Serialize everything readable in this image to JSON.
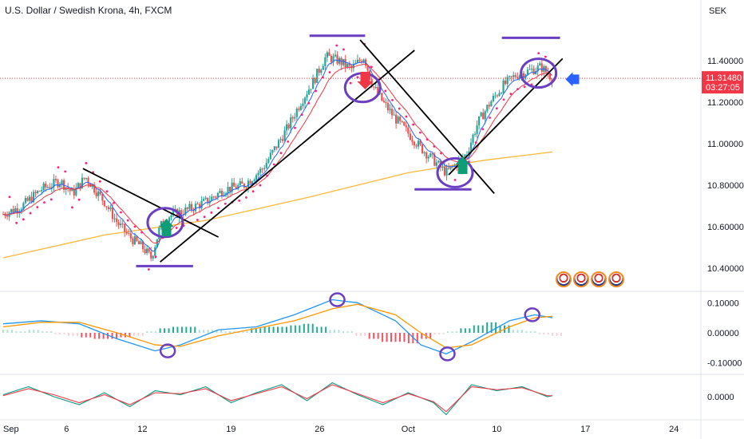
{
  "header": {
    "title": "U.S. Dollar / Swedish Krona, 4h, FXCM",
    "currency": "SEK"
  },
  "colors": {
    "up": "#26a69a",
    "down": "#ef5350",
    "sar": "#ff1f7a",
    "ema_fast": "#2962ff",
    "ema_slow": "#f23645",
    "ma_long": "#f9b93b",
    "annotation": "#6a3fc1",
    "trendline": "#000000",
    "macd_line": "#2196f3",
    "signal_line": "#ff9800",
    "price_tag": "#f23645"
  },
  "events": {
    "flag_icon": "us-flag-icon",
    "count": 4
  },
  "chart_data": [
    {
      "type": "candlestick",
      "panel": "price",
      "title": "U.S. Dollar / Swedish Krona, 4h, FXCM",
      "ylabel": "SEK",
      "ylim": [
        10.3,
        11.6
      ],
      "yticks": [
        "11.40000",
        "11.20000",
        "11.00000",
        "10.80000",
        "10.60000",
        "10.40000"
      ],
      "x_ticks": [
        {
          "label": "Sep",
          "x": 0
        },
        {
          "label": "6",
          "x": 5
        },
        {
          "label": "12",
          "x": 11
        },
        {
          "label": "19",
          "x": 18
        },
        {
          "label": "26",
          "x": 25
        },
        {
          "label": "Oct",
          "x": 32
        },
        {
          "label": "10",
          "x": 39
        },
        {
          "label": "17",
          "x": 46
        },
        {
          "label": "24",
          "x": 53
        }
      ],
      "x_range": [
        0,
        55
      ],
      "close_path": [
        [
          0,
          10.66
        ],
        [
          1.5,
          10.7
        ],
        [
          3,
          10.78
        ],
        [
          4.5,
          10.82
        ],
        [
          5.5,
          10.76
        ],
        [
          6.5,
          10.84
        ],
        [
          8,
          10.72
        ],
        [
          9,
          10.62
        ],
        [
          10,
          10.55
        ],
        [
          11,
          10.5
        ],
        [
          11.7,
          10.45
        ],
        [
          12.4,
          10.6
        ],
        [
          13,
          10.65
        ],
        [
          14.5,
          10.68
        ],
        [
          16,
          10.72
        ],
        [
          17.5,
          10.78
        ],
        [
          19,
          10.8
        ],
        [
          20.5,
          10.88
        ],
        [
          21.5,
          10.98
        ],
        [
          22.5,
          11.08
        ],
        [
          23.5,
          11.2
        ],
        [
          24.5,
          11.3
        ],
        [
          25.5,
          11.42
        ],
        [
          26.5,
          11.4
        ],
        [
          27.5,
          11.36
        ],
        [
          28.5,
          11.42
        ],
        [
          29.2,
          11.28
        ],
        [
          30,
          11.2
        ],
        [
          31,
          11.12
        ],
        [
          32,
          11.05
        ],
        [
          33,
          10.98
        ],
        [
          34,
          10.92
        ],
        [
          35,
          10.86
        ],
        [
          35.8,
          10.9
        ],
        [
          36.6,
          10.95
        ],
        [
          37.5,
          11.1
        ],
        [
          38.5,
          11.2
        ],
        [
          39.5,
          11.28
        ],
        [
          40.5,
          11.33
        ],
        [
          41.5,
          11.35
        ],
        [
          42.5,
          11.37
        ],
        [
          43.4,
          11.315
        ]
      ],
      "last_price": "11.31480",
      "countdown": "03:27:05",
      "moving_averages": [
        {
          "name": "",
          "period_hint": "long",
          "path": [
            [
              0,
              10.45
            ],
            [
              8,
              10.56
            ],
            [
              16,
              10.63
            ],
            [
              24,
              10.74
            ],
            [
              32,
              10.86
            ],
            [
              38,
              10.92
            ],
            [
              43.4,
              10.96
            ]
          ]
        }
      ],
      "annotations": {
        "horizontal_lines": [
          {
            "x0": 10.5,
            "x1": 15,
            "y": 10.41
          },
          {
            "x0": 24.2,
            "x1": 28.6,
            "y": 11.52
          },
          {
            "x0": 32.5,
            "x1": 37,
            "y": 10.78
          },
          {
            "x0": 39.4,
            "x1": 44,
            "y": 11.51
          }
        ],
        "trendlines": [
          {
            "x0": 6.3,
            "y0": 10.88,
            "x1": 17,
            "y1": 10.55
          },
          {
            "x0": 12.4,
            "y0": 10.43,
            "x1": 32.5,
            "y1": 11.45
          },
          {
            "x0": 28.2,
            "y0": 11.5,
            "x1": 38.8,
            "y1": 10.76
          },
          {
            "x0": 35.2,
            "y0": 10.85,
            "x1": 44.2,
            "y1": 11.41
          }
        ],
        "ellipses": [
          {
            "x": 12.8,
            "y": 10.62
          },
          {
            "x": 28.4,
            "y": 11.27
          },
          {
            "x": 35.7,
            "y": 10.86
          },
          {
            "x": 42.3,
            "y": 11.34
          }
        ],
        "arrows": [
          {
            "kind": "down",
            "x": 28.6,
            "y": 11.3
          },
          {
            "kind": "up",
            "x": 12.9,
            "y": 10.6
          },
          {
            "kind": "up",
            "x": 36.3,
            "y": 10.9
          },
          {
            "kind": "left-marker",
            "x": 45,
            "y": 11.31
          }
        ]
      }
    },
    {
      "type": "line",
      "panel": "macd",
      "ylim": [
        -0.13,
        0.13
      ],
      "yticks": [
        "0.10000",
        "0.00000",
        "-0.10000"
      ],
      "series": [
        {
          "role": "macd",
          "points": [
            [
              0,
              0.03
            ],
            [
              3,
              0.04
            ],
            [
              6,
              0.03
            ],
            [
              9,
              -0.02
            ],
            [
              12,
              -0.06
            ],
            [
              14,
              -0.04
            ],
            [
              17,
              0.01
            ],
            [
              20,
              0.02
            ],
            [
              23,
              0.06
            ],
            [
              26,
              0.11
            ],
            [
              28,
              0.1
            ],
            [
              31,
              0.04
            ],
            [
              33,
              -0.04
            ],
            [
              35,
              -0.07
            ],
            [
              37,
              -0.03
            ],
            [
              40,
              0.04
            ],
            [
              42,
              0.06
            ],
            [
              43.4,
              0.05
            ]
          ]
        },
        {
          "role": "signal",
          "points": [
            [
              0,
              0.02
            ],
            [
              3,
              0.035
            ],
            [
              6,
              0.035
            ],
            [
              9,
              0.0
            ],
            [
              12,
              -0.04
            ],
            [
              14,
              -0.045
            ],
            [
              17,
              -0.01
            ],
            [
              20,
              0.015
            ],
            [
              23,
              0.04
            ],
            [
              26,
              0.08
            ],
            [
              28,
              0.095
            ],
            [
              31,
              0.06
            ],
            [
              33,
              0.0
            ],
            [
              35,
              -0.05
            ],
            [
              37,
              -0.04
            ],
            [
              40,
              0.02
            ],
            [
              42,
              0.05
            ],
            [
              43.4,
              0.055
            ]
          ]
        }
      ],
      "histogram": [
        0.01,
        0.005,
        0.01,
        0.005,
        -0.005,
        -0.01,
        -0.015,
        -0.02,
        -0.02,
        -0.015,
        -0.01,
        0.005,
        0.015,
        0.02,
        0.02,
        0.01,
        0.01,
        0.005,
        0.005,
        0.015,
        0.02,
        0.02,
        0.025,
        0.03,
        0.02,
        0.01,
        0.005,
        -0.01,
        -0.02,
        -0.03,
        -0.03,
        -0.035,
        -0.02,
        -0.005,
        0.005,
        0.015,
        0.025,
        0.035,
        0.025,
        0.01,
        0.005,
        -0.005,
        -0.01
      ],
      "circles": [
        {
          "x": 13,
          "y": -0.06
        },
        {
          "x": 26.4,
          "y": 0.11
        },
        {
          "x": 35.1,
          "y": -0.07
        },
        {
          "x": 41.8,
          "y": 0.06
        }
      ]
    },
    {
      "type": "line",
      "panel": "oscillator",
      "ylim": [
        -1,
        1
      ],
      "yticks": [
        "0.0000"
      ],
      "series": [
        {
          "role": "fast",
          "points": [
            [
              0,
              0.1
            ],
            [
              2,
              0.5
            ],
            [
              4,
              0.0
            ],
            [
              6,
              -0.4
            ],
            [
              8,
              0.2
            ],
            [
              10,
              -0.5
            ],
            [
              12,
              0.3
            ],
            [
              14,
              0.1
            ],
            [
              16,
              0.5
            ],
            [
              18,
              -0.3
            ],
            [
              20,
              0.2
            ],
            [
              22,
              0.6
            ],
            [
              24,
              -0.2
            ],
            [
              26,
              0.7
            ],
            [
              28,
              0.1
            ],
            [
              30,
              -0.4
            ],
            [
              32,
              0.2
            ],
            [
              34,
              -0.3
            ],
            [
              35,
              -0.9
            ],
            [
              37,
              0.6
            ],
            [
              39,
              0.3
            ],
            [
              41,
              0.5
            ],
            [
              43,
              0.0
            ],
            [
              43.4,
              0.05
            ]
          ]
        },
        {
          "role": "slow",
          "points": [
            [
              0,
              0.05
            ],
            [
              2,
              0.4
            ],
            [
              4,
              0.1
            ],
            [
              6,
              -0.3
            ],
            [
              8,
              0.1
            ],
            [
              10,
              -0.4
            ],
            [
              12,
              0.2
            ],
            [
              14,
              0.15
            ],
            [
              16,
              0.4
            ],
            [
              18,
              -0.2
            ],
            [
              20,
              0.15
            ],
            [
              22,
              0.5
            ],
            [
              24,
              -0.1
            ],
            [
              26,
              0.6
            ],
            [
              28,
              0.15
            ],
            [
              30,
              -0.3
            ],
            [
              32,
              0.15
            ],
            [
              34,
              -0.25
            ],
            [
              35,
              -0.75
            ],
            [
              37,
              0.5
            ],
            [
              39,
              0.35
            ],
            [
              41,
              0.45
            ],
            [
              43,
              0.05
            ],
            [
              43.4,
              0.05
            ]
          ]
        }
      ]
    }
  ]
}
